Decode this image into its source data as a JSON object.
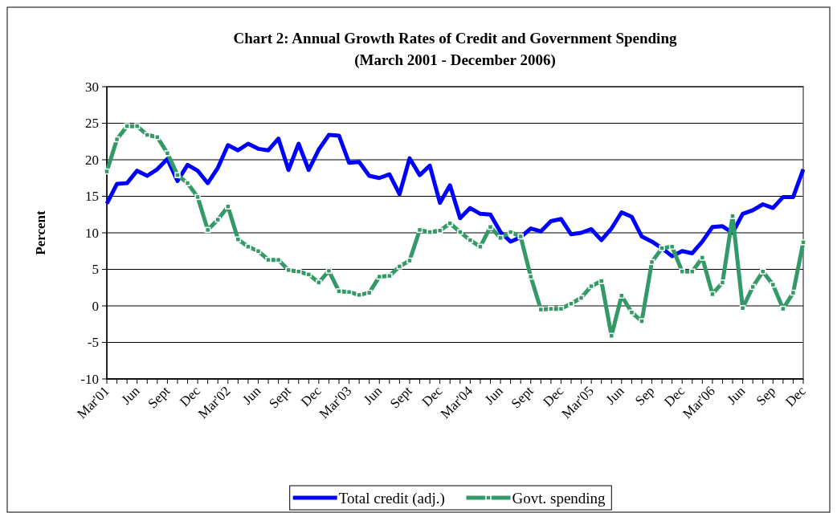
{
  "chart_data": {
    "type": "line",
    "title": "Chart 2: Annual Growth Rates of Credit and Government Spending",
    "subtitle": "(March 2001 - December 2006)",
    "ylabel": "Percent",
    "categories": [
      "Mar'01",
      null,
      null,
      "Jun",
      null,
      null,
      "Sept",
      null,
      null,
      "Dec",
      null,
      null,
      "Mar'02",
      null,
      null,
      "Jun",
      null,
      null,
      "Sept",
      null,
      null,
      "Dec",
      null,
      null,
      "Mar'03",
      null,
      null,
      "Jun",
      null,
      null,
      "Sept",
      null,
      null,
      "Dec",
      null,
      null,
      "Mar'04",
      null,
      null,
      "Jun",
      null,
      null,
      "Sept",
      null,
      null,
      "Dec",
      null,
      null,
      "Mar'05",
      null,
      null,
      "Jun",
      null,
      null,
      "Sep",
      null,
      null,
      "Dec",
      null,
      null,
      "Mar'06",
      null,
      null,
      "Jun",
      null,
      null,
      "Sep",
      null,
      null,
      "Dec"
    ],
    "series": [
      {
        "name": "Total credit (adj.)",
        "color": "#0000ff",
        "marker": "none",
        "values": [
          14.0,
          16.7,
          16.8,
          18.5,
          17.8,
          18.7,
          20.1,
          17.1,
          19.3,
          18.5,
          16.8,
          18.9,
          22.0,
          21.3,
          22.2,
          21.5,
          21.3,
          22.9,
          18.6,
          22.2,
          18.6,
          21.4,
          23.4,
          23.3,
          19.6,
          19.7,
          17.8,
          17.5,
          18.0,
          15.3,
          20.2,
          17.9,
          19.2,
          14.1,
          16.5,
          12.0,
          13.4,
          12.6,
          12.5,
          10.1,
          8.8,
          9.4,
          10.6,
          10.2,
          11.6,
          11.9,
          9.8,
          10.0,
          10.5,
          9.0,
          10.6,
          12.8,
          12.2,
          9.5,
          8.8,
          7.9,
          6.8,
          7.5,
          7.2,
          8.8,
          10.8,
          10.9,
          10.0,
          12.6,
          13.1,
          13.9,
          13.4,
          14.9,
          14.9,
          18.7
        ]
      },
      {
        "name": "Govt. spending",
        "color": "#339966",
        "marker": "square",
        "values": [
          18.4,
          22.8,
          24.6,
          24.6,
          23.4,
          23.1,
          20.9,
          17.9,
          16.8,
          14.9,
          10.4,
          11.8,
          13.6,
          9.1,
          8.1,
          7.5,
          6.3,
          6.3,
          4.9,
          4.7,
          4.3,
          3.2,
          4.8,
          2.0,
          1.9,
          1.5,
          1.8,
          4.0,
          4.1,
          5.4,
          6.2,
          10.4,
          10.1,
          10.3,
          11.3,
          10.1,
          9.0,
          8.1,
          10.8,
          9.3,
          10.1,
          9.5,
          4.0,
          -0.5,
          -0.4,
          -0.4,
          0.3,
          1.1,
          2.7,
          3.4,
          -4.1,
          1.4,
          -0.9,
          -2.1,
          6.0,
          7.9,
          8.1,
          4.7,
          4.7,
          6.6,
          1.6,
          3.2,
          12.3,
          -0.3,
          2.6,
          4.7,
          2.9,
          -0.4,
          1.8,
          8.7
        ]
      }
    ],
    "ylim": [
      -10,
      30
    ],
    "yticks": [
      -10,
      -5,
      0,
      5,
      10,
      15,
      20,
      25,
      30
    ],
    "grid": "y",
    "legend": "bottom",
    "line_style": "solid"
  }
}
